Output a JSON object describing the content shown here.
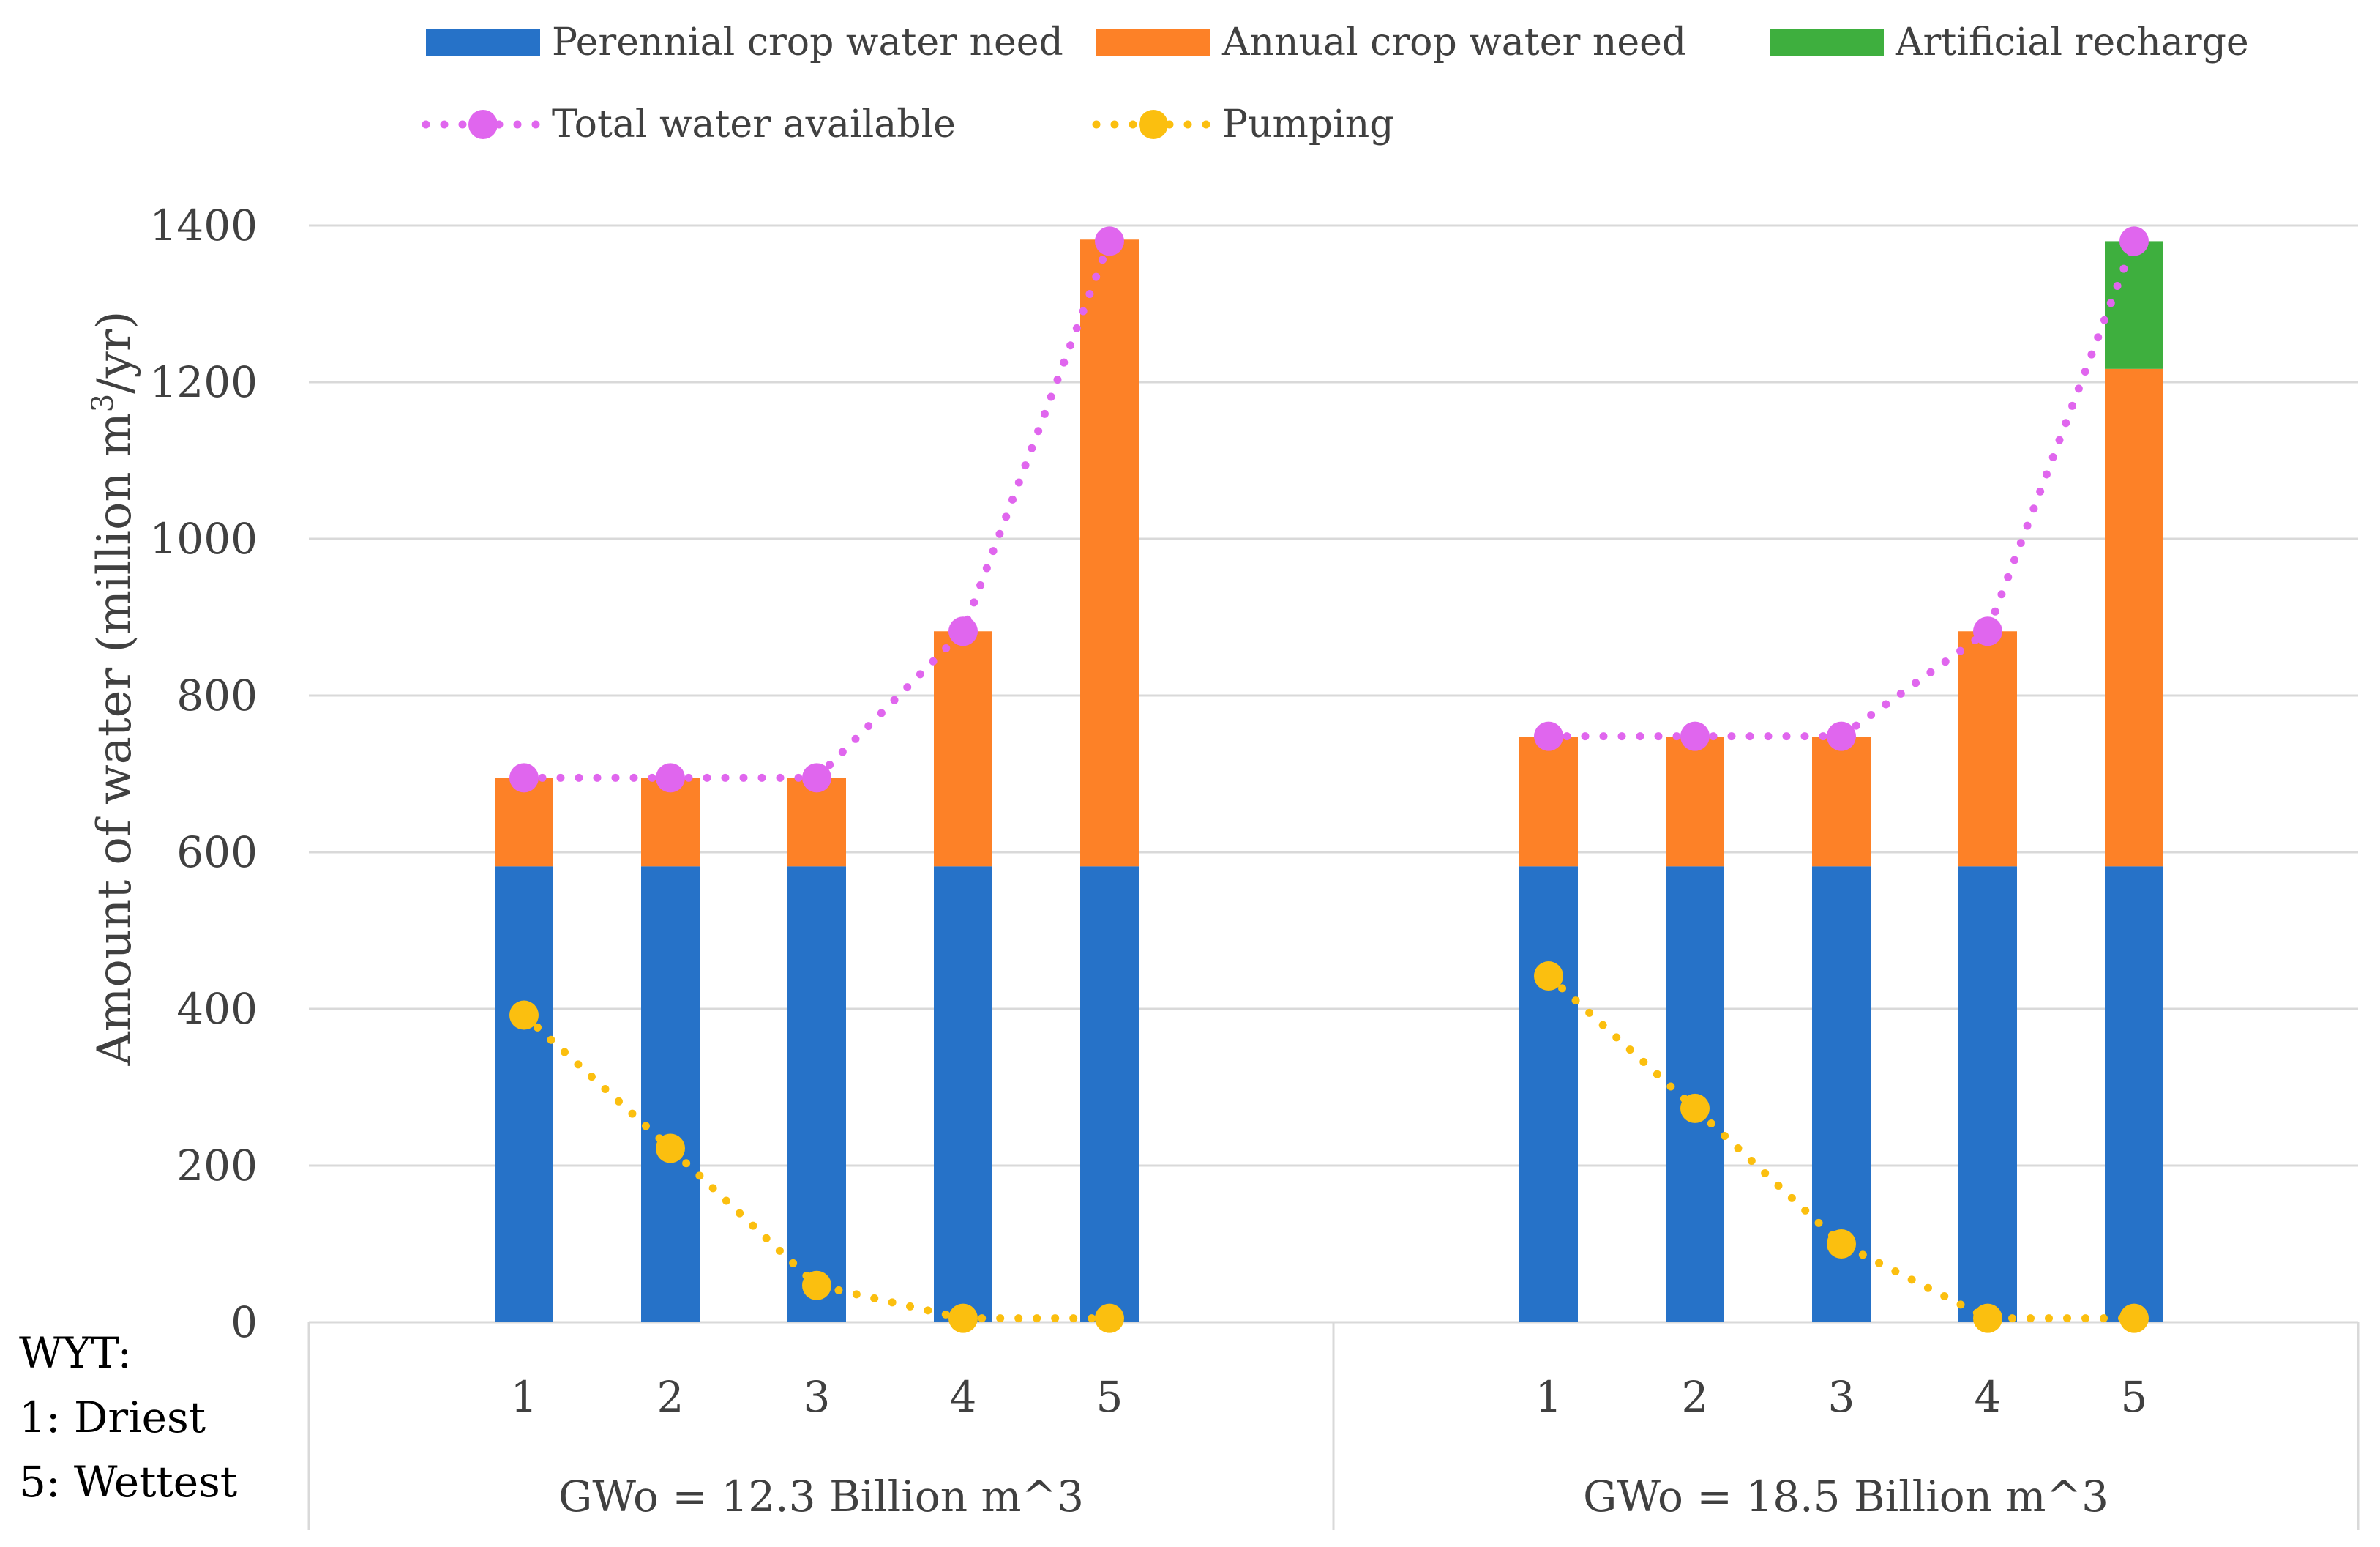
{
  "chart_data": {
    "type": "bar",
    "stacked": true,
    "groups": [
      {
        "label": "GWo = 12.3 Billion m^3",
        "categories": [
          "1",
          "2",
          "3",
          "4",
          "5"
        ],
        "series": [
          {
            "name": "Perennial crop water need",
            "values": [
              582,
              582,
              582,
              582,
              582
            ]
          },
          {
            "name": "Annual crop water need",
            "values": [
              113,
              113,
              113,
              300,
              800
            ]
          },
          {
            "name": "Artificial recharge",
            "values": [
              0,
              0,
              0,
              0,
              0
            ]
          }
        ],
        "lines": [
          {
            "name": "Total water available",
            "values": [
              695,
              695,
              695,
              882,
              1380
            ]
          },
          {
            "name": "Pumping",
            "values": [
              392,
              222,
              47,
              5,
              5
            ]
          }
        ]
      },
      {
        "label": "GWo = 18.5 Billion m^3",
        "categories": [
          "1",
          "2",
          "3",
          "4",
          "5"
        ],
        "series": [
          {
            "name": "Perennial crop water need",
            "values": [
              582,
              582,
              582,
              582,
              582
            ]
          },
          {
            "name": "Annual crop water need",
            "values": [
              165,
              165,
              165,
              300,
              635
            ]
          },
          {
            "name": "Artificial recharge",
            "values": [
              0,
              0,
              0,
              0,
              163
            ]
          }
        ],
        "lines": [
          {
            "name": "Total water available",
            "values": [
              748,
              748,
              748,
              882,
              1380
            ]
          },
          {
            "name": "Pumping",
            "values": [
              442,
              273,
              100,
              5,
              5
            ]
          }
        ]
      }
    ],
    "legend": [
      {
        "name": "Perennial crop water need",
        "kind": "bar",
        "color": "#2672c8"
      },
      {
        "name": "Annual crop water need",
        "kind": "bar",
        "color": "#fd8127"
      },
      {
        "name": "Artificial recharge",
        "kind": "bar",
        "color": "#3eaf3e"
      },
      {
        "name": "Total water available",
        "kind": "dotted-line",
        "color": "#e066ee"
      },
      {
        "name": "Pumping",
        "kind": "dotted-line",
        "color": "#fbbf0f"
      }
    ],
    "legend_position": "top",
    "ylabel_text": "Amount of water (million m",
    "ylabel_sup": "3",
    "ylabel_tail": "/yr)",
    "ylim": [
      0,
      1400
    ],
    "yticks": [
      0,
      200,
      400,
      600,
      800,
      1000,
      1200,
      1400
    ],
    "grid": true
  },
  "note": {
    "line1": "WYT:",
    "line2": "1: Driest",
    "line3": "5: Wettest"
  }
}
